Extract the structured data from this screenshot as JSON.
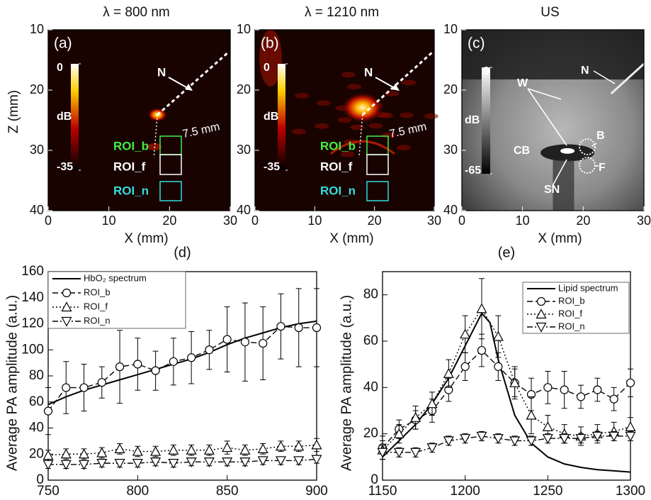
{
  "chart_data": [
    {
      "type": "image",
      "title": "λ = 800 nm",
      "label": "(a)",
      "xlabel": "X (mm)",
      "ylabel": "Z (mm)",
      "xlim": [
        0,
        30
      ],
      "ylim": [
        10,
        40
      ],
      "xticks": [
        0,
        10,
        20,
        30
      ],
      "yticks": [
        10,
        20,
        30,
        40
      ],
      "colormap": "hot",
      "clim": [
        -35,
        0
      ],
      "cbar_ticks": [
        0,
        -35
      ],
      "cbar_label": "dB",
      "annotations": [
        "N",
        "7.5 mm",
        "ROI_b",
        "ROI_f",
        "ROI_n"
      ]
    },
    {
      "type": "image",
      "title": "λ = 1210 nm",
      "label": "(b)",
      "xlabel": "X (mm)",
      "xlim": [
        0,
        30
      ],
      "ylim": [
        10,
        40
      ],
      "xticks": [
        0,
        10,
        20,
        30
      ],
      "yticks": [
        10,
        20,
        30,
        40
      ],
      "colormap": "hot",
      "clim": [
        -35,
        0
      ],
      "cbar_ticks": [
        0,
        -35
      ],
      "cbar_label": "dB",
      "annotations": [
        "N",
        "7.5 mm",
        "ROI_b",
        "ROI_f",
        "ROI_n"
      ]
    },
    {
      "type": "image",
      "title": "US",
      "label": "(c)",
      "xlabel": "X (mm)",
      "xlim": [
        0,
        30
      ],
      "ylim": [
        10,
        40
      ],
      "xticks": [
        0,
        10,
        20,
        30
      ],
      "yticks": [
        10,
        20,
        30,
        40
      ],
      "colormap": "gray",
      "clim": [
        -65,
        0
      ],
      "cbar_ticks": [
        0,
        -65
      ],
      "cbar_label": "dB",
      "annotations": [
        "W",
        "CB",
        "SN",
        "B",
        "F",
        "N"
      ]
    },
    {
      "type": "line",
      "title": "(d)",
      "xlabel": "Wavelength (nm)",
      "ylabel": "Average PA amplitude (a.u.)",
      "xlim": [
        750,
        900
      ],
      "ylim": [
        0,
        160
      ],
      "xticks": [
        750,
        800,
        850,
        900
      ],
      "yticks": [
        0,
        20,
        40,
        60,
        80,
        100,
        120,
        140,
        160
      ],
      "legend": "upper left",
      "series": [
        {
          "name": "HbO₂ spectrum",
          "color": "#000000",
          "line_style": "solid",
          "marker": "none",
          "x": [
            750,
            760,
            770,
            780,
            790,
            800,
            810,
            820,
            830,
            840,
            850,
            860,
            870,
            880,
            890,
            900
          ],
          "values": [
            58,
            64,
            69,
            73,
            77,
            81,
            85,
            89,
            93,
            98,
            104,
            109,
            113,
            117,
            120,
            122
          ]
        },
        {
          "name": "ROI_b",
          "color": "#000000",
          "line_style": "dashed",
          "marker": "circle",
          "x": [
            750,
            760,
            770,
            780,
            790,
            800,
            810,
            820,
            830,
            840,
            850,
            860,
            870,
            880,
            890,
            900
          ],
          "values": [
            53,
            71,
            71,
            75,
            87,
            89,
            84,
            91,
            94,
            100,
            108,
            106,
            105,
            118,
            117,
            117
          ],
          "errors": [
            18,
            20,
            18,
            12,
            28,
            20,
            15,
            18,
            20,
            15,
            25,
            30,
            28,
            25,
            30,
            30
          ]
        },
        {
          "name": "ROI_f",
          "color": "#000000",
          "line_style": "dotted",
          "marker": "triangle-up",
          "x": [
            750,
            760,
            770,
            780,
            790,
            800,
            810,
            820,
            830,
            840,
            850,
            860,
            870,
            880,
            890,
            900
          ],
          "values": [
            19,
            20,
            20,
            21,
            24,
            22,
            22,
            23,
            23,
            23,
            25,
            23,
            24,
            26,
            26,
            27
          ],
          "errors": [
            4,
            4,
            4,
            4,
            4,
            4,
            4,
            4,
            4,
            4,
            5,
            4,
            4,
            4,
            4,
            5
          ]
        },
        {
          "name": "ROI_n",
          "color": "#000000",
          "line_style": "dashdot",
          "marker": "triangle-down",
          "x": [
            750,
            760,
            770,
            780,
            790,
            800,
            810,
            820,
            830,
            840,
            850,
            860,
            870,
            880,
            890,
            900
          ],
          "values": [
            12,
            12,
            12,
            13,
            13,
            13,
            14,
            13,
            14,
            14,
            14,
            14,
            15,
            15,
            15,
            16
          ],
          "errors": [
            3,
            3,
            3,
            3,
            3,
            3,
            3,
            3,
            3,
            3,
            3,
            3,
            3,
            3,
            3,
            3
          ]
        }
      ]
    },
    {
      "type": "line",
      "title": "(e)",
      "xlabel": "Wavelength (nm)",
      "ylabel": "Average PA amplitude (a.u.)",
      "xlim": [
        1150,
        1300
      ],
      "ylim": [
        0,
        90
      ],
      "xticks": [
        1150,
        1200,
        1250,
        1300
      ],
      "yticks": [
        0,
        20,
        40,
        60,
        80
      ],
      "legend": "upper right",
      "series": [
        {
          "name": "Lipid spectrum",
          "color": "#000000",
          "line_style": "solid",
          "marker": "none",
          "x": [
            1150,
            1160,
            1170,
            1180,
            1190,
            1200,
            1210,
            1215,
            1220,
            1230,
            1240,
            1250,
            1260,
            1270,
            1280,
            1290,
            1300
          ],
          "values": [
            10,
            17,
            24,
            33,
            44,
            58,
            72,
            68,
            52,
            28,
            16,
            10,
            7,
            5.5,
            4.5,
            4,
            3.5
          ]
        },
        {
          "name": "ROI_b",
          "color": "#000000",
          "line_style": "dashed",
          "marker": "circle",
          "x": [
            1150,
            1160,
            1170,
            1180,
            1190,
            1200,
            1210,
            1220,
            1230,
            1240,
            1250,
            1260,
            1270,
            1280,
            1290,
            1300
          ],
          "values": [
            14,
            22,
            26,
            30,
            39,
            49,
            56,
            49,
            42,
            37,
            40,
            39,
            36,
            39,
            35,
            42
          ],
          "errors": [
            5,
            4,
            4,
            5,
            5,
            6,
            7,
            6,
            6,
            7,
            7,
            8,
            5,
            5,
            5,
            6
          ]
        },
        {
          "name": "ROI_f",
          "color": "#000000",
          "line_style": "dotted",
          "marker": "triangle-up",
          "x": [
            1150,
            1160,
            1170,
            1180,
            1190,
            1200,
            1210,
            1220,
            1230,
            1240,
            1250,
            1260,
            1270,
            1280,
            1290,
            1300
          ],
          "values": [
            13,
            20,
            27,
            33,
            46,
            63,
            74,
            62,
            42,
            28,
            23,
            20,
            19,
            20,
            21,
            23
          ],
          "errors": [
            4,
            4,
            5,
            5,
            6,
            8,
            13,
            9,
            7,
            8,
            5,
            4,
            4,
            4,
            4,
            4
          ]
        },
        {
          "name": "ROI_n",
          "color": "#000000",
          "line_style": "dashdot",
          "marker": "triangle-down",
          "x": [
            1150,
            1160,
            1170,
            1180,
            1190,
            1200,
            1210,
            1220,
            1230,
            1240,
            1250,
            1260,
            1270,
            1280,
            1290,
            1300
          ],
          "values": [
            12,
            12,
            12,
            14,
            17,
            18,
            19,
            18,
            17,
            17,
            18,
            18,
            18,
            19,
            19,
            19
          ],
          "errors": [
            3,
            2,
            2,
            2,
            2,
            2,
            2,
            2,
            2,
            2,
            2,
            2,
            2,
            2,
            2,
            2
          ]
        }
      ]
    }
  ]
}
